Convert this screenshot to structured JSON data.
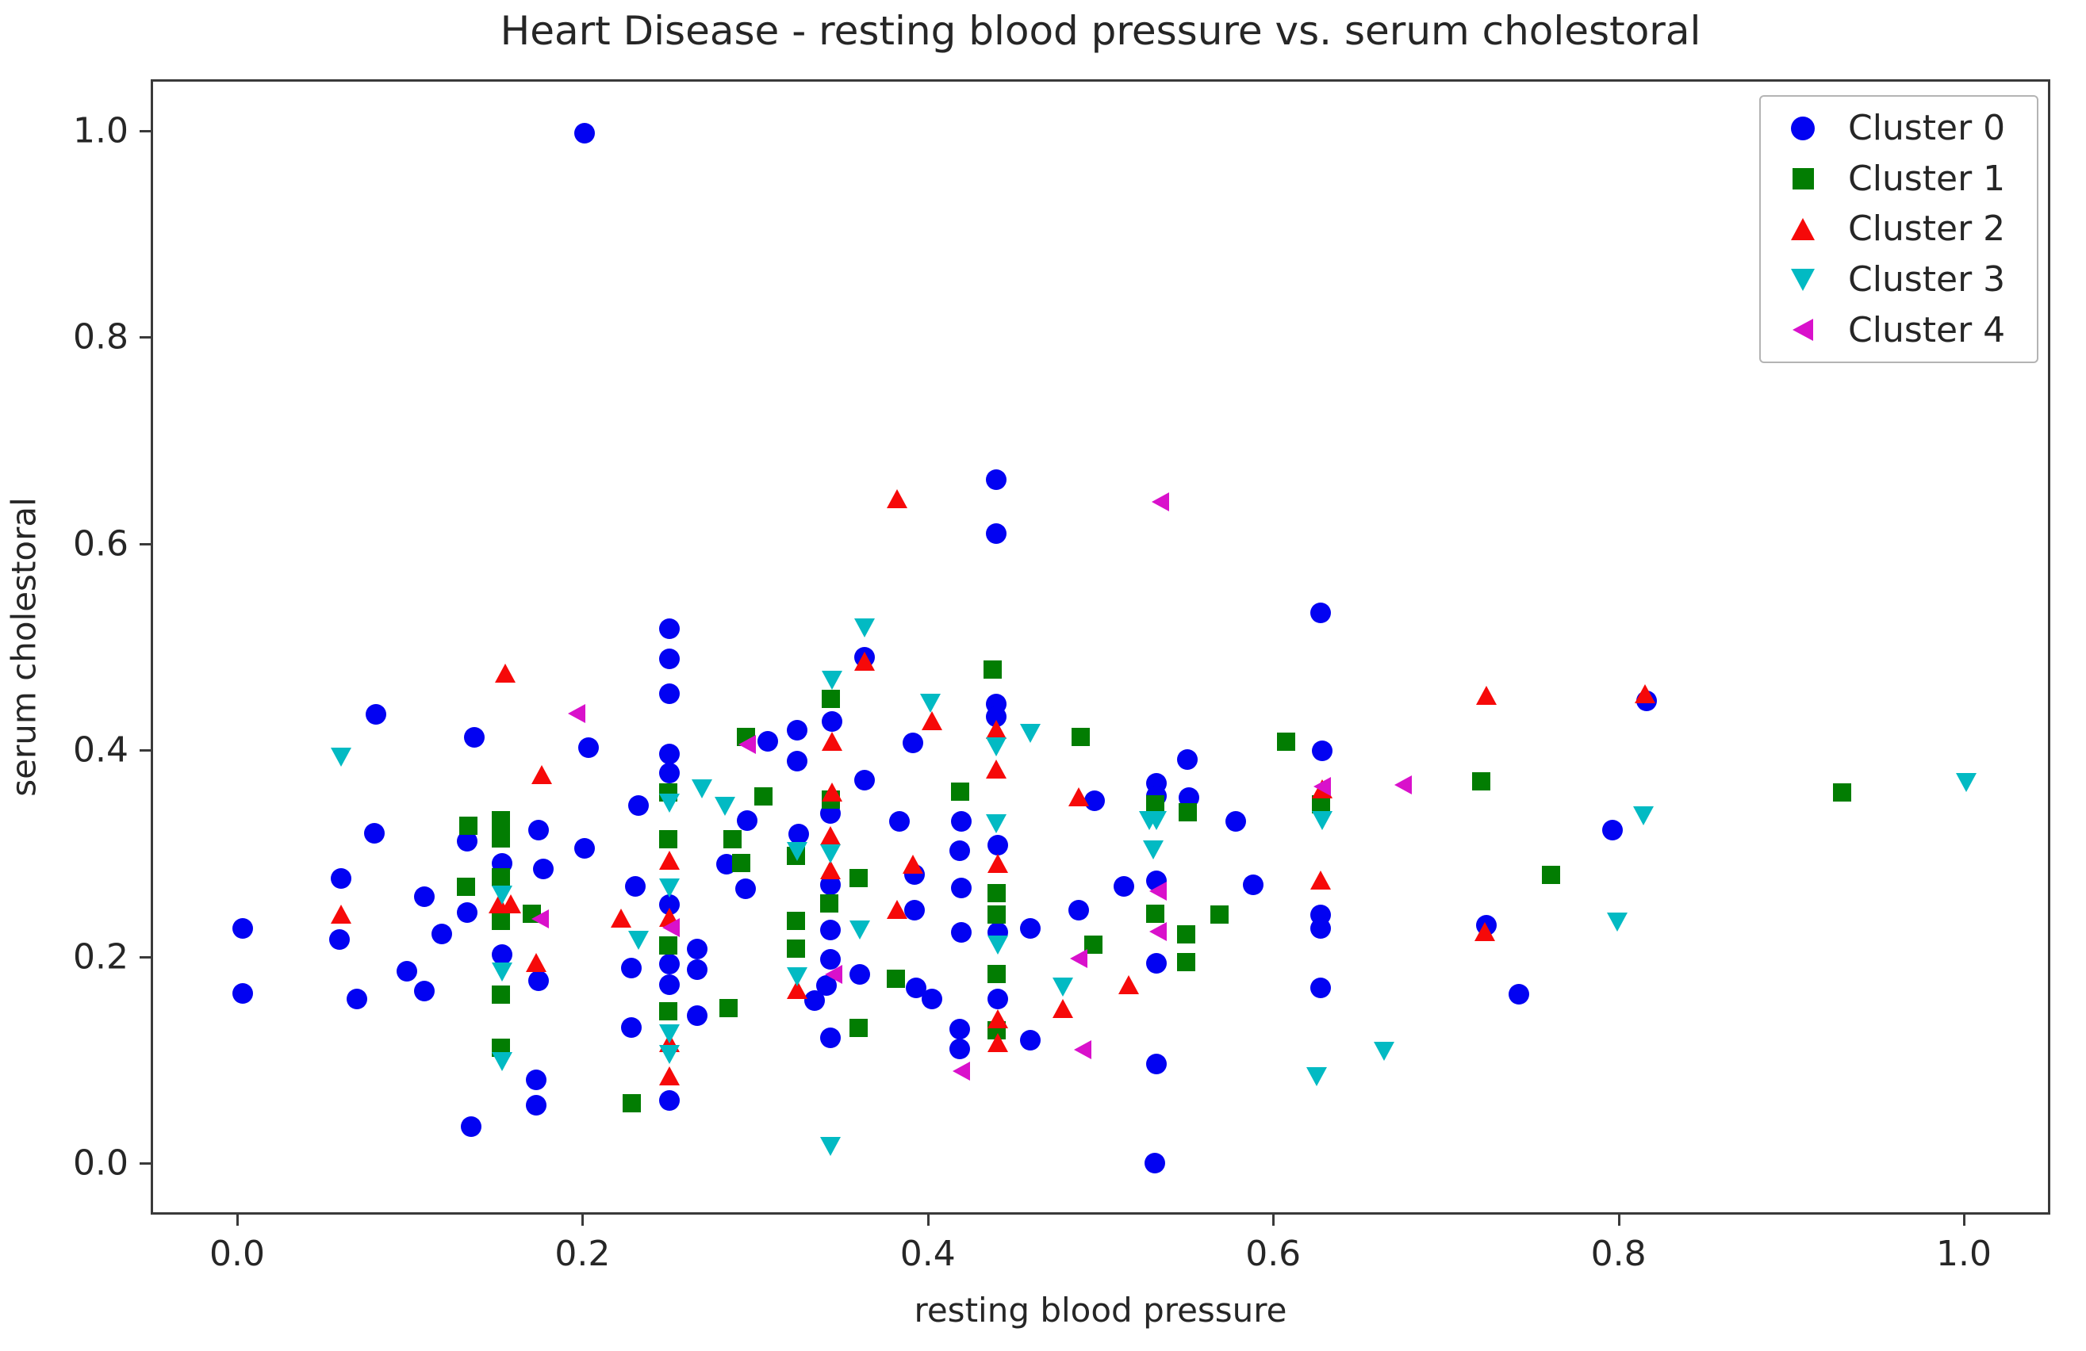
{
  "chart_data": {
    "type": "scatter",
    "title": "Heart Disease - resting blood pressure vs. serum cholestoral",
    "xlabel": "resting blood pressure",
    "ylabel": "serum cholestoral",
    "xlim": [
      -0.05,
      1.05
    ],
    "ylim": [
      -0.05,
      1.05
    ],
    "grid": false,
    "legend_position": "upper right",
    "x_ticks": {
      "values": [
        0.0,
        0.2,
        0.4,
        0.6,
        0.8,
        1.0
      ],
      "labels": [
        "0.0",
        "0.2",
        "0.4",
        "0.6",
        "0.8",
        "1.0"
      ]
    },
    "y_ticks": {
      "values": [
        0.0,
        0.2,
        0.4,
        0.6,
        0.8,
        1.0
      ],
      "labels": [
        "0.0",
        "0.2",
        "0.4",
        "0.6",
        "0.8",
        "1.0"
      ]
    },
    "series": [
      {
        "name": "Cluster 0",
        "marker": "circle",
        "color": "#0202f2",
        "points": [
          [
            0.2,
            1.0
          ],
          [
            0.438,
            0.664
          ],
          [
            0.438,
            0.612
          ],
          [
            0.626,
            0.535
          ],
          [
            0.362,
            0.492
          ],
          [
            0.249,
            0.52
          ],
          [
            0.249,
            0.491
          ],
          [
            0.249,
            0.457
          ],
          [
            0.438,
            0.447
          ],
          [
            0.438,
            0.435
          ],
          [
            0.343,
            0.43
          ],
          [
            0.079,
            0.437
          ],
          [
            0.136,
            0.415
          ],
          [
            0.306,
            0.411
          ],
          [
            0.323,
            0.422
          ],
          [
            0.323,
            0.392
          ],
          [
            0.39,
            0.409
          ],
          [
            0.202,
            0.405
          ],
          [
            0.627,
            0.402
          ],
          [
            0.549,
            0.393
          ],
          [
            0.249,
            0.399
          ],
          [
            0.249,
            0.38
          ],
          [
            0.362,
            0.373
          ],
          [
            0.531,
            0.37
          ],
          [
            0.531,
            0.358
          ],
          [
            0.55,
            0.356
          ],
          [
            0.495,
            0.353
          ],
          [
            0.577,
            0.333
          ],
          [
            0.382,
            0.333
          ],
          [
            0.418,
            0.333
          ],
          [
            0.294,
            0.334
          ],
          [
            0.231,
            0.349
          ],
          [
            0.815,
            0.45
          ],
          [
            0.795,
            0.325
          ],
          [
            0.078,
            0.322
          ],
          [
            0.173,
            0.325
          ],
          [
            0.132,
            0.314
          ],
          [
            0.152,
            0.293
          ],
          [
            0.512,
            0.27
          ],
          [
            0.587,
            0.272
          ],
          [
            0.626,
            0.243
          ],
          [
            0.626,
            0.23
          ],
          [
            0.722,
            0.233
          ],
          [
            0.741,
            0.166
          ],
          [
            0.626,
            0.172
          ],
          [
            0.531,
            0.276
          ],
          [
            0.531,
            0.196
          ],
          [
            0.531,
            0.098
          ],
          [
            0.53,
            0.002
          ],
          [
            0.282,
            0.292
          ],
          [
            0.293,
            0.268
          ],
          [
            0.324,
            0.321
          ],
          [
            0.342,
            0.341
          ],
          [
            0.342,
            0.272
          ],
          [
            0.342,
            0.228
          ],
          [
            0.342,
            0.2
          ],
          [
            0.34,
            0.174
          ],
          [
            0.333,
            0.16
          ],
          [
            0.342,
            0.124
          ],
          [
            0.359,
            0.185
          ],
          [
            0.417,
            0.305
          ],
          [
            0.418,
            0.269
          ],
          [
            0.418,
            0.226
          ],
          [
            0.417,
            0.132
          ],
          [
            0.417,
            0.113
          ],
          [
            0.439,
            0.31
          ],
          [
            0.439,
            0.226
          ],
          [
            0.439,
            0.161
          ],
          [
            0.458,
            0.23
          ],
          [
            0.458,
            0.121
          ],
          [
            0.486,
            0.247
          ],
          [
            0.391,
            0.282
          ],
          [
            0.391,
            0.247
          ],
          [
            0.392,
            0.172
          ],
          [
            0.401,
            0.161
          ],
          [
            0.2,
            0.307
          ],
          [
            0.229,
            0.27
          ],
          [
            0.227,
            0.191
          ],
          [
            0.227,
            0.134
          ],
          [
            0.176,
            0.287
          ],
          [
            0.173,
            0.179
          ],
          [
            0.172,
            0.083
          ],
          [
            0.172,
            0.058
          ],
          [
            0.152,
            0.204
          ],
          [
            0.134,
            0.038
          ],
          [
            0.107,
            0.26
          ],
          [
            0.117,
            0.224
          ],
          [
            0.097,
            0.188
          ],
          [
            0.107,
            0.169
          ],
          [
            0.068,
            0.161
          ],
          [
            0.059,
            0.278
          ],
          [
            0.058,
            0.219
          ],
          [
            0.002,
            0.23
          ],
          [
            0.002,
            0.167
          ],
          [
            0.249,
            0.253
          ],
          [
            0.249,
            0.195
          ],
          [
            0.249,
            0.175
          ],
          [
            0.249,
            0.063
          ],
          [
            0.265,
            0.21
          ],
          [
            0.265,
            0.19
          ],
          [
            0.265,
            0.145
          ],
          [
            0.132,
            0.245
          ]
        ]
      },
      {
        "name": "Cluster 1",
        "marker": "square",
        "color": "#027d02",
        "points": [
          [
            0.343,
            0.451
          ],
          [
            0.437,
            0.479
          ],
          [
            0.294,
            0.414
          ],
          [
            0.488,
            0.414
          ],
          [
            0.607,
            0.409
          ],
          [
            0.304,
            0.356
          ],
          [
            0.343,
            0.353
          ],
          [
            0.418,
            0.361
          ],
          [
            0.249,
            0.36
          ],
          [
            0.249,
            0.315
          ],
          [
            0.249,
            0.212
          ],
          [
            0.249,
            0.148
          ],
          [
            0.286,
            0.315
          ],
          [
            0.291,
            0.292
          ],
          [
            0.284,
            0.151
          ],
          [
            0.323,
            0.299
          ],
          [
            0.323,
            0.236
          ],
          [
            0.323,
            0.209
          ],
          [
            0.342,
            0.253
          ],
          [
            0.359,
            0.277
          ],
          [
            0.359,
            0.132
          ],
          [
            0.381,
            0.18
          ],
          [
            0.439,
            0.263
          ],
          [
            0.439,
            0.242
          ],
          [
            0.439,
            0.184
          ],
          [
            0.439,
            0.13
          ],
          [
            0.495,
            0.213
          ],
          [
            0.549,
            0.223
          ],
          [
            0.549,
            0.196
          ],
          [
            0.568,
            0.242
          ],
          [
            0.531,
            0.243
          ],
          [
            0.531,
            0.349
          ],
          [
            0.55,
            0.341
          ],
          [
            0.627,
            0.349
          ],
          [
            0.72,
            0.371
          ],
          [
            0.76,
            0.28
          ],
          [
            0.929,
            0.36
          ],
          [
            0.152,
            0.333
          ],
          [
            0.152,
            0.316
          ],
          [
            0.152,
            0.278
          ],
          [
            0.152,
            0.236
          ],
          [
            0.152,
            0.164
          ],
          [
            0.152,
            0.113
          ],
          [
            0.133,
            0.328
          ],
          [
            0.132,
            0.269
          ],
          [
            0.17,
            0.243
          ],
          [
            0.228,
            0.059
          ]
        ]
      },
      {
        "name": "Cluster 2",
        "marker": "triangle-up",
        "color": "#f60909",
        "points": [
          [
            0.381,
            0.645
          ],
          [
            0.154,
            0.476
          ],
          [
            0.362,
            0.488
          ],
          [
            0.343,
            0.41
          ],
          [
            0.401,
            0.43
          ],
          [
            0.438,
            0.422
          ],
          [
            0.438,
            0.383
          ],
          [
            0.175,
            0.378
          ],
          [
            0.343,
            0.361
          ],
          [
            0.059,
            0.243
          ],
          [
            0.15,
            0.253
          ],
          [
            0.157,
            0.253
          ],
          [
            0.249,
            0.295
          ],
          [
            0.249,
            0.24
          ],
          [
            0.249,
            0.118
          ],
          [
            0.249,
            0.086
          ],
          [
            0.221,
            0.239
          ],
          [
            0.342,
            0.319
          ],
          [
            0.342,
            0.286
          ],
          [
            0.323,
            0.17
          ],
          [
            0.39,
            0.291
          ],
          [
            0.381,
            0.247
          ],
          [
            0.439,
            0.292
          ],
          [
            0.439,
            0.141
          ],
          [
            0.439,
            0.118
          ],
          [
            0.477,
            0.151
          ],
          [
            0.486,
            0.356
          ],
          [
            0.515,
            0.174
          ],
          [
            0.627,
            0.364
          ],
          [
            0.626,
            0.276
          ],
          [
            0.721,
            0.226
          ],
          [
            0.722,
            0.455
          ],
          [
            0.814,
            0.456
          ],
          [
            0.172,
            0.196
          ]
        ]
      },
      {
        "name": "Cluster 3",
        "marker": "triangle-down",
        "color": "#02bac3",
        "points": [
          [
            0.059,
            0.395
          ],
          [
            0.362,
            0.52
          ],
          [
            0.343,
            0.469
          ],
          [
            0.4,
            0.447
          ],
          [
            0.458,
            0.418
          ],
          [
            0.438,
            0.405
          ],
          [
            0.438,
            0.33
          ],
          [
            0.268,
            0.364
          ],
          [
            0.281,
            0.347
          ],
          [
            0.249,
            0.35
          ],
          [
            0.249,
            0.268
          ],
          [
            0.249,
            0.127
          ],
          [
            0.249,
            0.107
          ],
          [
            0.342,
            0.301
          ],
          [
            0.323,
            0.303
          ],
          [
            0.323,
            0.182
          ],
          [
            0.359,
            0.227
          ],
          [
            0.439,
            0.213
          ],
          [
            0.477,
            0.172
          ],
          [
            0.529,
            0.305
          ],
          [
            0.527,
            0.333
          ],
          [
            0.531,
            0.333
          ],
          [
            0.627,
            0.333
          ],
          [
            0.624,
            0.085
          ],
          [
            0.663,
            0.11
          ],
          [
            0.798,
            0.235
          ],
          [
            0.813,
            0.338
          ],
          [
            1.0,
            0.37
          ],
          [
            0.152,
            0.261
          ],
          [
            0.152,
            0.187
          ],
          [
            0.152,
            0.1
          ],
          [
            0.231,
            0.217
          ],
          [
            0.342,
            0.018
          ]
        ]
      },
      {
        "name": "Cluster 4",
        "marker": "triangle-left",
        "color": "#d911cb",
        "points": [
          [
            0.534,
            0.642
          ],
          [
            0.196,
            0.437
          ],
          [
            0.295,
            0.407
          ],
          [
            0.675,
            0.368
          ],
          [
            0.628,
            0.366
          ],
          [
            0.533,
            0.265
          ],
          [
            0.533,
            0.226
          ],
          [
            0.487,
            0.2
          ],
          [
            0.489,
            0.111
          ],
          [
            0.419,
            0.091
          ],
          [
            0.345,
            0.184
          ],
          [
            0.251,
            0.23
          ],
          [
            0.175,
            0.238
          ]
        ]
      }
    ]
  }
}
